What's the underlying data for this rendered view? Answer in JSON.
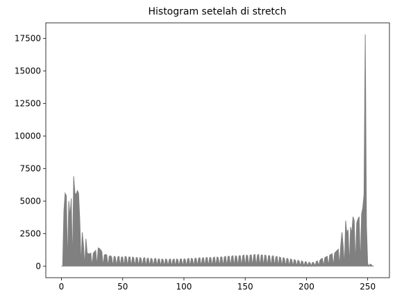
{
  "chart_data": {
    "type": "area",
    "title": "Histogram setelah di stretch",
    "color": "#808080",
    "x": [
      0,
      1,
      2,
      3,
      4,
      5,
      6,
      7,
      8,
      9,
      10,
      11,
      12,
      13,
      14,
      15,
      16,
      17,
      18,
      19,
      20,
      21,
      22,
      23,
      24,
      25,
      26,
      27,
      28,
      29,
      30,
      31,
      32,
      33,
      34,
      35,
      36,
      37,
      38,
      39,
      40,
      41,
      42,
      43,
      44,
      45,
      46,
      47,
      48,
      49,
      50,
      51,
      52,
      53,
      54,
      55,
      56,
      57,
      58,
      59,
      60,
      61,
      62,
      63,
      64,
      65,
      66,
      67,
      68,
      69,
      70,
      71,
      72,
      73,
      74,
      75,
      76,
      77,
      78,
      79,
      80,
      81,
      82,
      83,
      84,
      85,
      86,
      87,
      88,
      89,
      90,
      91,
      92,
      93,
      94,
      95,
      96,
      97,
      98,
      99,
      100,
      101,
      102,
      103,
      104,
      105,
      106,
      107,
      108,
      109,
      110,
      111,
      112,
      113,
      114,
      115,
      116,
      117,
      118,
      119,
      120,
      121,
      122,
      123,
      124,
      125,
      126,
      127,
      128,
      129,
      130,
      131,
      132,
      133,
      134,
      135,
      136,
      137,
      138,
      139,
      140,
      141,
      142,
      143,
      144,
      145,
      146,
      147,
      148,
      149,
      150,
      151,
      152,
      153,
      154,
      155,
      156,
      157,
      158,
      159,
      160,
      161,
      162,
      163,
      164,
      165,
      166,
      167,
      168,
      169,
      170,
      171,
      172,
      173,
      174,
      175,
      176,
      177,
      178,
      179,
      180,
      181,
      182,
      183,
      184,
      185,
      186,
      187,
      188,
      189,
      190,
      191,
      192,
      193,
      194,
      195,
      196,
      197,
      198,
      199,
      200,
      201,
      202,
      203,
      204,
      205,
      206,
      207,
      208,
      209,
      210,
      211,
      212,
      213,
      214,
      215,
      216,
      217,
      218,
      219,
      220,
      221,
      222,
      223,
      224,
      225,
      226,
      227,
      228,
      229,
      230,
      231,
      232,
      233,
      234,
      235,
      236,
      237,
      238,
      239,
      240,
      241,
      242,
      243,
      244,
      245,
      246,
      247,
      248,
      249,
      250,
      251,
      252,
      253,
      254,
      255
    ],
    "values": [
      0,
      0,
      4200,
      5600,
      5400,
      0,
      5000,
      3800,
      5200,
      0,
      6900,
      5600,
      5500,
      5800,
      5600,
      3500,
      0,
      2600,
      1600,
      0,
      2100,
      1000,
      950,
      950,
      1000,
      0,
      1000,
      1100,
      1200,
      0,
      1400,
      1350,
      1250,
      1100,
      0,
      850,
      900,
      850,
      0,
      750,
      800,
      700,
      0,
      750,
      700,
      0,
      700,
      750,
      0,
      700,
      700,
      0,
      750,
      700,
      0,
      700,
      700,
      0,
      700,
      650,
      0,
      650,
      650,
      0,
      650,
      600,
      0,
      600,
      650,
      0,
      600,
      600,
      0,
      600,
      550,
      0,
      550,
      600,
      0,
      550,
      550,
      0,
      550,
      500,
      0,
      550,
      500,
      0,
      500,
      550,
      0,
      500,
      550,
      0,
      550,
      500,
      0,
      550,
      550,
      0,
      550,
      550,
      0,
      550,
      600,
      0,
      600,
      550,
      0,
      600,
      600,
      0,
      600,
      650,
      0,
      600,
      650,
      0,
      650,
      650,
      0,
      650,
      650,
      0,
      650,
      700,
      0,
      700,
      650,
      0,
      700,
      700,
      0,
      700,
      750,
      0,
      750,
      750,
      0,
      750,
      800,
      0,
      800,
      750,
      0,
      800,
      800,
      0,
      800,
      850,
      0,
      850,
      800,
      0,
      850,
      850,
      0,
      850,
      900,
      0,
      850,
      900,
      0,
      850,
      850,
      0,
      850,
      800,
      0,
      800,
      800,
      0,
      750,
      800,
      0,
      700,
      750,
      0,
      700,
      650,
      0,
      650,
      600,
      0,
      600,
      550,
      0,
      550,
      500,
      0,
      500,
      450,
      0,
      450,
      400,
      0,
      400,
      350,
      0,
      350,
      300,
      0,
      300,
      250,
      0,
      300,
      250,
      0,
      350,
      400,
      0,
      450,
      550,
      600,
      0,
      650,
      700,
      750,
      0,
      850,
      900,
      950,
      0,
      1000,
      1100,
      1200,
      1300,
      0,
      1600,
      2600,
      1500,
      0,
      3500,
      2500,
      2800,
      0,
      3000,
      2500,
      3800,
      3500,
      0,
      3300,
      3600,
      3800,
      0,
      4000,
      4500,
      5500,
      17800,
      3000,
      200,
      0,
      150,
      100,
      0,
      0
    ],
    "xlim": [
      -12.75,
      267.75
    ],
    "xticks": [
      0,
      50,
      100,
      150,
      200,
      250
    ],
    "ylim": [
      -890,
      18690
    ],
    "yticks": [
      0,
      2500,
      5000,
      7500,
      10000,
      12500,
      15000,
      17500
    ]
  }
}
